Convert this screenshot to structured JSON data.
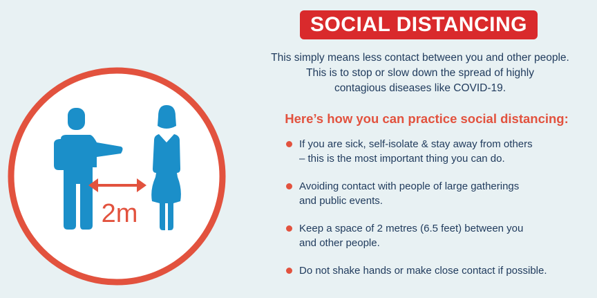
{
  "title": "SOCIAL DISTANCING",
  "intro": "This simply means less contact between you and other people.\nThis is to stop or slow down the spread of highly\ncontagious diseases like COVID-19.",
  "subheading": "Here’s how you can practice social distancing:",
  "tips": [
    "If you are sick, self-isolate & stay away from others\n– this is the most important thing you can do.",
    "Avoiding contact with people of large gatherings\nand public events.",
    "Keep a space of 2 metres (6.5 feet) between you\nand other people.",
    "Do not shake hands or make close contact if possible."
  ],
  "illustration": {
    "distance_label": "2m",
    "icons": [
      "man-icon",
      "woman-icon",
      "double-arrow-icon"
    ]
  },
  "colors": {
    "background": "#e8f1f3",
    "banner_red": "#d92a2c",
    "accent_coral": "#e2523e",
    "text_navy": "#1f3a5c",
    "figure_blue": "#1b8fc9"
  }
}
